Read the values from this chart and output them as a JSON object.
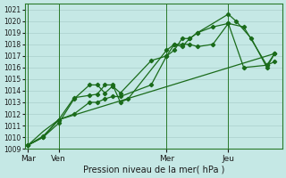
{
  "xlabel": "Pression niveau de la mer( hPa )",
  "ylim": [
    1009,
    1021.5
  ],
  "bg_color": "#c5e8e5",
  "grid_color": "#aacfcc",
  "line_color": "#1a6b1a",
  "marker_color": "#1a6b1a",
  "vline_color": "#2a7a2a",
  "xtick_labels": [
    "Mar",
    "Ven",
    "Mer",
    "Jeu"
  ],
  "xtick_positions": [
    0,
    2,
    9,
    13
  ],
  "xlim": [
    -0.2,
    16.5
  ],
  "series": [
    {
      "x": [
        0,
        1,
        2,
        3,
        4,
        4.5,
        5,
        5.5,
        6,
        6.5,
        9,
        9.5,
        10,
        10.5,
        11,
        13,
        13.5,
        14.5,
        15.5,
        16
      ],
      "y": [
        1009.3,
        1010.0,
        1011.5,
        1013.4,
        1013.6,
        1013.7,
        1014.5,
        1014.5,
        1013.0,
        1013.3,
        1017.5,
        1018.0,
        1017.8,
        1018.5,
        1019.0,
        1020.6,
        1020.0,
        1018.5,
        1016.0,
        1017.2
      ],
      "marker": true
    },
    {
      "x": [
        0,
        1,
        2,
        3,
        4,
        4.5,
        5,
        5.5,
        6,
        8,
        9,
        9.5,
        10,
        10.5,
        11,
        12,
        13,
        14,
        15.5,
        16
      ],
      "y": [
        1009.3,
        1010.0,
        1011.2,
        1013.3,
        1014.5,
        1014.5,
        1013.8,
        1014.4,
        1013.8,
        1016.6,
        1017.0,
        1017.5,
        1018.5,
        1018.5,
        1019.0,
        1019.5,
        1019.8,
        1016.0,
        1016.2,
        1017.2
      ],
      "marker": true
    },
    {
      "x": [
        0,
        1,
        2,
        16
      ],
      "y": [
        1009.3,
        1010.5,
        1011.5,
        1017.2
      ],
      "marker": false
    },
    {
      "x": [
        0,
        1,
        2,
        3,
        4,
        4.5,
        5,
        5.5,
        6,
        8,
        9,
        9.5,
        10,
        10.5,
        11,
        12,
        13,
        14,
        15.5,
        16
      ],
      "y": [
        1009.3,
        1010.1,
        1011.5,
        1012.0,
        1013.0,
        1013.0,
        1013.3,
        1013.5,
        1013.5,
        1014.5,
        1017.0,
        1018.0,
        1018.0,
        1018.0,
        1017.8,
        1018.0,
        1019.8,
        1019.5,
        1016.2,
        1016.5
      ],
      "marker": true
    }
  ],
  "vline_positions": [
    0,
    2,
    9,
    13
  ]
}
